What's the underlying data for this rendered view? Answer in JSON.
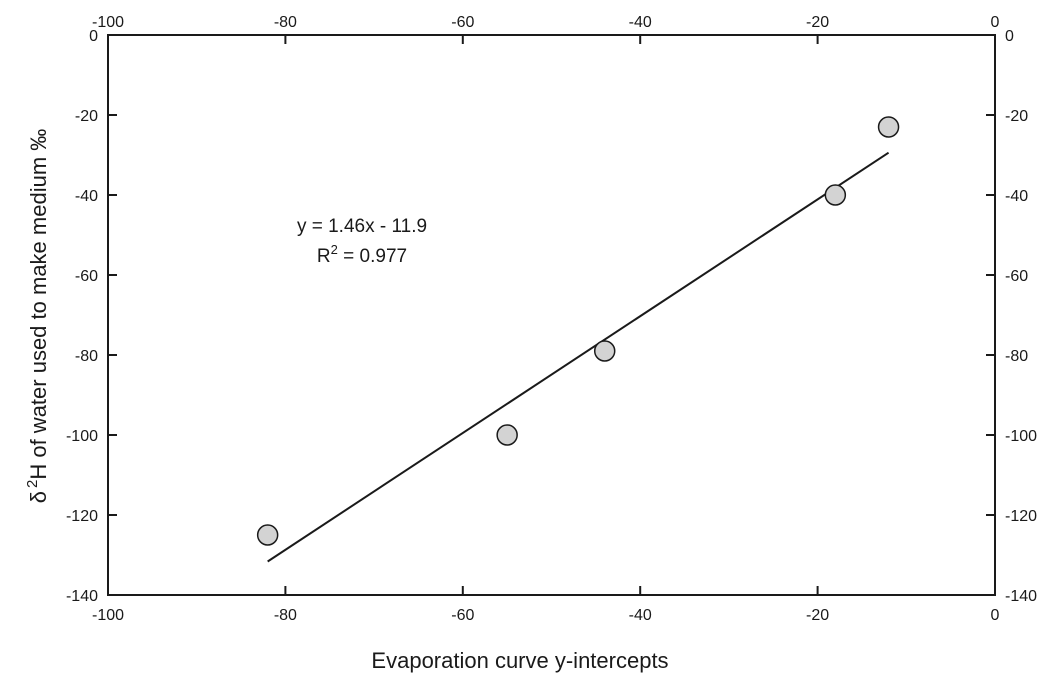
{
  "chart_data": {
    "type": "scatter",
    "title": "",
    "xlabel": "Evaporation curve y-intercepts",
    "ylabel": "δ²H of water used to make medium ‰",
    "ylabel_parts": {
      "delta": "δ",
      "sup": "2",
      "rest": "H of water used to make medium ‰"
    },
    "xlim": [
      -100,
      0
    ],
    "ylim": [
      -140,
      0
    ],
    "x_ticks": [
      -100,
      -80,
      -60,
      -40,
      -20,
      0
    ],
    "x_tick_labels": [
      "-100",
      "-80",
      "-60",
      "-40",
      "-20",
      "0"
    ],
    "y_ticks": [
      0,
      -20,
      -40,
      -60,
      -80,
      -100,
      -120,
      -140
    ],
    "y_tick_labels": [
      "0",
      "-20",
      "-40",
      "-60",
      "-80",
      "-100",
      "-120",
      "-140"
    ],
    "top_x_tick_labels": [
      "-100",
      "-80",
      "-60",
      "-40",
      "-20",
      "0"
    ],
    "right_y_tick_labels": [
      "0",
      "-20",
      "-40",
      "-60",
      "-80",
      "-100",
      "-120",
      "-140"
    ],
    "grid": false,
    "series": [
      {
        "x": [
          -82,
          -55,
          -44,
          -18,
          -12
        ],
        "y": [
          -125,
          -100,
          -79,
          -40,
          -23
        ],
        "marker": "circle",
        "fill": "#d3d3d3",
        "edge": "#1a1a1a"
      }
    ],
    "fit": {
      "slope": 1.46,
      "intercept": -11.9,
      "x_range": [
        -82,
        -12
      ],
      "equation_label": "y = 1.46x - 11.9",
      "r2_prefix": "R",
      "r2_sup": "2",
      "r2_value": " = 0.977",
      "color": "#1a1a1a"
    }
  }
}
